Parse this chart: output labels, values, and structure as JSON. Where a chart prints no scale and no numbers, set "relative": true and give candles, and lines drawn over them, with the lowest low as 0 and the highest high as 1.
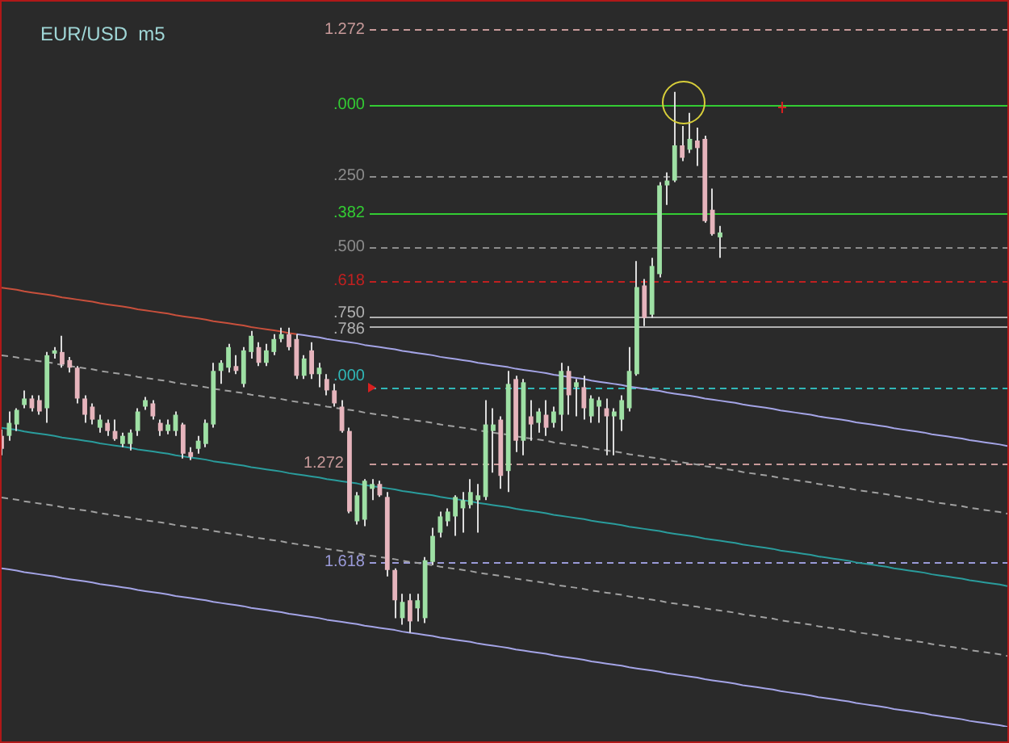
{
  "chart_data": {
    "type": "candlestick",
    "title": "EUR/USD  m5",
    "relative": true,
    "tick_labels": false,
    "categories": [
      null,
      null,
      null,
      null,
      null,
      null,
      null,
      null,
      null,
      null,
      null,
      null,
      null,
      null,
      null,
      null,
      null,
      null,
      null,
      null,
      null,
      null,
      null,
      null,
      null,
      null,
      null,
      null,
      null,
      null,
      null,
      null,
      null,
      null,
      null,
      null,
      null,
      null,
      null,
      null,
      null,
      null,
      null,
      null,
      null,
      null,
      null,
      null,
      null,
      null,
      null,
      null,
      null,
      null,
      null,
      null,
      null,
      null,
      null,
      null,
      null,
      null,
      null,
      null,
      null,
      null,
      null,
      null,
      null,
      null,
      null,
      null,
      null,
      null,
      null,
      null,
      null,
      null,
      null,
      null,
      null,
      null,
      null,
      null,
      null,
      null,
      null,
      null,
      null,
      null,
      null,
      null,
      null,
      null,
      null,
      null,
      null,
      null,
      null,
      null,
      null,
      null,
      null,
      null,
      null,
      null,
      null,
      null,
      null,
      null,
      null,
      null,
      null,
      null,
      null,
      null,
      null,
      null,
      null,
      null,
      null,
      null,
      null,
      null,
      null,
      null,
      null,
      null,
      null,
      null,
      null,
      null,
      null,
      null
    ],
    "ohlc": [
      [
        0.364,
        0.376,
        0.328,
        0.34
      ],
      [
        0.364,
        0.409,
        0.355,
        0.388
      ],
      [
        0.385,
        0.415,
        0.373,
        0.412
      ],
      [
        0.421,
        0.448,
        0.415,
        0.433
      ],
      [
        0.433,
        0.439,
        0.409,
        0.415
      ],
      [
        0.43,
        0.439,
        0.403,
        0.409
      ],
      [
        0.415,
        0.519,
        0.388,
        0.513
      ],
      [
        0.516,
        0.528,
        0.507,
        0.522
      ],
      [
        0.519,
        0.549,
        0.49,
        0.496
      ],
      [
        0.504,
        0.51,
        0.481,
        0.49
      ],
      [
        0.49,
        0.493,
        0.424,
        0.433
      ],
      [
        0.433,
        0.439,
        0.388,
        0.403
      ],
      [
        0.418,
        0.424,
        0.385,
        0.394
      ],
      [
        0.379,
        0.403,
        0.37,
        0.394
      ],
      [
        0.388,
        0.394,
        0.364,
        0.373
      ],
      [
        0.373,
        0.394,
        0.355,
        0.358
      ],
      [
        0.349,
        0.37,
        0.343,
        0.364
      ],
      [
        0.349,
        0.376,
        0.337,
        0.37
      ],
      [
        0.373,
        0.415,
        0.364,
        0.409
      ],
      [
        0.418,
        0.436,
        0.412,
        0.43
      ],
      [
        0.424,
        0.43,
        0.394,
        0.4
      ],
      [
        0.388,
        0.394,
        0.364,
        0.373
      ],
      [
        0.373,
        0.394,
        0.367,
        0.385
      ],
      [
        0.373,
        0.409,
        0.364,
        0.403
      ],
      [
        0.385,
        0.388,
        0.322,
        0.331
      ],
      [
        0.334,
        0.343,
        0.319,
        0.325
      ],
      [
        0.34,
        0.364,
        0.331,
        0.355
      ],
      [
        0.349,
        0.394,
        0.343,
        0.388
      ],
      [
        0.385,
        0.499,
        0.379,
        0.484
      ],
      [
        0.484,
        0.504,
        0.46,
        0.499
      ],
      [
        0.49,
        0.534,
        0.481,
        0.528
      ],
      [
        0.493,
        0.513,
        0.478,
        0.484
      ],
      [
        0.46,
        0.528,
        0.454,
        0.522
      ],
      [
        0.519,
        0.558,
        0.507,
        0.549
      ],
      [
        0.528,
        0.537,
        0.493,
        0.499
      ],
      [
        0.499,
        0.534,
        0.493,
        0.522
      ],
      [
        0.519,
        0.552,
        0.513,
        0.543
      ],
      [
        0.543,
        0.564,
        0.537,
        0.552
      ],
      [
        0.552,
        0.564,
        0.522,
        0.528
      ],
      [
        0.543,
        0.552,
        0.469,
        0.475
      ],
      [
        0.475,
        0.513,
        0.469,
        0.507
      ],
      [
        0.522,
        0.537,
        0.469,
        0.478
      ],
      [
        0.478,
        0.499,
        0.454,
        0.49
      ],
      [
        0.469,
        0.478,
        0.439,
        0.448
      ],
      [
        0.448,
        0.46,
        0.418,
        0.424
      ],
      [
        0.418,
        0.43,
        0.37,
        0.373
      ],
      [
        0.373,
        0.379,
        0.221,
        0.224
      ],
      [
        0.206,
        0.26,
        0.2,
        0.254
      ],
      [
        0.209,
        0.284,
        0.197,
        0.281
      ],
      [
        0.266,
        0.284,
        0.245,
        0.275
      ],
      [
        0.275,
        0.281,
        0.251,
        0.254
      ],
      [
        0.251,
        0.26,
        0.104,
        0.116
      ],
      [
        0.116,
        0.119,
        0.027,
        0.06
      ],
      [
        0.027,
        0.072,
        0.015,
        0.057
      ],
      [
        0.06,
        0.072,
        0,
        0.021
      ],
      [
        0.045,
        0.072,
        0.021,
        0.06
      ],
      [
        0.027,
        0.14,
        0.018,
        0.134
      ],
      [
        0.131,
        0.194,
        0.125,
        0.179
      ],
      [
        0.185,
        0.224,
        0.176,
        0.215
      ],
      [
        0.206,
        0.23,
        0.197,
        0.224
      ],
      [
        0.215,
        0.254,
        0.179,
        0.251
      ],
      [
        0.23,
        0.26,
        0.185,
        0.245
      ],
      [
        0.236,
        0.284,
        0.23,
        0.26
      ],
      [
        0.245,
        0.275,
        0.185,
        0.254
      ],
      [
        0.251,
        0.43,
        0.245,
        0.385
      ],
      [
        0.373,
        0.415,
        0.296,
        0.385
      ],
      [
        0.394,
        0.4,
        0.266,
        0.29
      ],
      [
        0.299,
        0.484,
        0.26,
        0.46
      ],
      [
        0.469,
        0.475,
        0.334,
        0.355
      ],
      [
        0.355,
        0.469,
        0.328,
        0.463
      ],
      [
        0.4,
        0.43,
        0.355,
        0.385
      ],
      [
        0.388,
        0.415,
        0.37,
        0.409
      ],
      [
        0.403,
        0.43,
        0.364,
        0.379
      ],
      [
        0.388,
        0.418,
        0.379,
        0.409
      ],
      [
        0.403,
        0.499,
        0.373,
        0.484
      ],
      [
        0.484,
        0.493,
        0.403,
        0.439
      ],
      [
        0.454,
        0.469,
        0.4,
        0.463
      ],
      [
        0.454,
        0.475,
        0.394,
        0.415
      ],
      [
        0.4,
        0.439,
        0.388,
        0.433
      ],
      [
        0.418,
        0.436,
        0.388,
        0.43
      ],
      [
        0.415,
        0.433,
        0.328,
        0.4
      ],
      [
        0.4,
        0.415,
        0.328,
        0.409
      ],
      [
        0.394,
        0.439,
        0.373,
        0.43
      ],
      [
        0.415,
        0.528,
        0.409,
        0.484
      ],
      [
        0.478,
        0.687,
        0.475,
        0.639
      ],
      [
        0.642,
        0.654,
        0.567,
        0.582
      ],
      [
        0.588,
        0.693,
        0.582,
        0.678
      ],
      [
        0.663,
        0.833,
        0.657,
        0.827
      ],
      [
        0.827,
        0.851,
        0.791,
        0.836
      ],
      [
        0.836,
        1,
        0.833,
        0.901
      ],
      [
        0.901,
        0.937,
        0.872,
        0.878
      ],
      [
        0.893,
        0.961,
        0.887,
        0.913
      ],
      [
        0.91,
        0.934,
        0.863,
        0.896
      ],
      [
        0.913,
        0.919,
        0.758,
        0.761
      ],
      [
        0.782,
        0.821,
        0.734,
        0.737
      ],
      [
        0.731,
        0.752,
        0.693,
        0.74
      ],
      null,
      null,
      null,
      null,
      null,
      null,
      null,
      null,
      null,
      null,
      null,
      null,
      null,
      null,
      null,
      null,
      null,
      null,
      null,
      null,
      null,
      null,
      null,
      null,
      null,
      null,
      null,
      null,
      null,
      null,
      null,
      null,
      null,
      null,
      null,
      null,
      null,
      null
    ],
    "colors": [
      "#e6b4bc",
      "#9ee0a4",
      "#9ee0a4",
      "#9ee0a4",
      "#e6b4bc",
      "#e6b4bc",
      "#9ee0a4",
      "#9ee0a4",
      "#e6b4bc",
      "#e6b4bc",
      "#e6b4bc",
      "#e6b4bc",
      "#e6b4bc",
      "#9ee0a4",
      "#e6b4bc",
      "#e6b4bc",
      "#9ee0a4",
      "#9ee0a4",
      "#9ee0a4",
      "#9ee0a4",
      "#e6b4bc",
      "#e6b4bc",
      "#9ee0a4",
      "#9ee0a4",
      "#e6b4bc",
      "#e6b4bc",
      "#9ee0a4",
      "#9ee0a4",
      "#9ee0a4",
      "#9ee0a4",
      "#9ee0a4",
      "#e6b4bc",
      "#9ee0a4",
      "#9ee0a4",
      "#e6b4bc",
      "#9ee0a4",
      "#9ee0a4",
      "#9ee0a4",
      "#e6b4bc",
      "#e6b4bc",
      "#9ee0a4",
      "#e6b4bc",
      "#9ee0a4",
      "#e6b4bc",
      "#e6b4bc",
      "#e6b4bc",
      "#e6b4bc",
      "#9ee0a4",
      "#9ee0a4",
      "#9ee0a4",
      "#e6b4bc",
      "#e6b4bc",
      "#e6b4bc",
      "#9ee0a4",
      "#e6b4bc",
      "#9ee0a4",
      "#9ee0a4",
      "#9ee0a4",
      "#9ee0a4",
      "#9ee0a4",
      "#9ee0a4",
      "#9ee0a4",
      "#9ee0a4",
      "#9ee0a4",
      "#9ee0a4",
      "#9ee0a4",
      "#e6b4bc",
      "#9ee0a4",
      "#e6b4bc",
      "#9ee0a4",
      "#e6b4bc",
      "#9ee0a4",
      "#e6b4bc",
      "#9ee0a4",
      "#9ee0a4",
      "#e6b4bc",
      "#9ee0a4",
      "#e6b4bc",
      "#9ee0a4",
      "#9ee0a4",
      "#e6b4bc",
      "#9ee0a4",
      "#9ee0a4",
      "#9ee0a4",
      "#9ee0a4",
      "#e6b4bc",
      "#9ee0a4",
      "#9ee0a4",
      "#9ee0a4",
      "#9ee0a4",
      "#e6b4bc",
      "#9ee0a4",
      "#e6b4bc",
      "#e6b4bc",
      "#e6b4bc",
      "#9ee0a4",
      null,
      null,
      null,
      null,
      null,
      null,
      null,
      null,
      null,
      null,
      null,
      null,
      null,
      null,
      null,
      null,
      null,
      null,
      null,
      null,
      null,
      null,
      null,
      null,
      null,
      null,
      null,
      null,
      null,
      null,
      null,
      null,
      null,
      null,
      null,
      null,
      null,
      null
    ],
    "series": [
      {
        "type": "line",
        "color": "#c8503c",
        "line_style": "solid",
        "values": [
          0.638,
          0.636,
          0.634,
          0.631,
          0.629,
          0.627,
          0.625,
          0.623,
          0.62,
          0.618,
          0.616,
          0.614,
          0.612,
          0.609,
          0.607,
          0.605,
          0.603,
          0.601,
          0.598,
          0.596,
          0.594,
          0.592,
          0.59,
          0.587,
          0.585,
          0.583,
          0.581,
          0.579,
          0.576,
          0.574,
          0.572,
          0.57,
          0.568,
          0.565,
          0.563,
          0.561,
          0.559,
          0.557,
          0.554,
          0.552,
          null,
          null,
          null,
          null,
          null,
          null,
          null,
          null,
          null,
          null,
          null,
          null,
          null,
          null,
          null,
          null,
          null,
          null,
          null,
          null,
          null,
          null,
          null,
          null,
          null,
          null,
          null,
          null,
          null,
          null,
          null,
          null,
          null,
          null,
          null,
          null,
          null,
          null,
          null,
          null,
          null,
          null,
          null,
          null,
          null,
          null,
          null,
          null,
          null,
          null,
          null,
          null,
          null,
          null,
          null,
          null,
          null,
          null,
          null,
          null,
          null,
          null,
          null,
          null,
          null,
          null,
          null,
          null,
          null,
          null,
          null,
          null,
          null,
          null,
          null,
          null,
          null,
          null,
          null,
          null,
          null,
          null,
          null,
          null,
          null,
          null,
          null,
          null,
          null,
          null,
          null,
          null,
          null,
          null
        ]
      },
      {
        "type": "line",
        "color": "#a4a4e6",
        "line_style": "solid",
        "values": [
          null,
          null,
          null,
          null,
          null,
          null,
          null,
          null,
          null,
          null,
          null,
          null,
          null,
          null,
          null,
          null,
          null,
          null,
          null,
          null,
          null,
          null,
          null,
          null,
          null,
          null,
          null,
          null,
          null,
          null,
          null,
          null,
          null,
          null,
          null,
          null,
          null,
          null,
          null,
          0.552,
          0.55,
          0.548,
          0.546,
          0.543,
          0.541,
          0.539,
          0.537,
          0.535,
          0.532,
          0.53,
          0.528,
          0.526,
          0.524,
          0.521,
          0.519,
          0.517,
          0.515,
          0.513,
          0.51,
          0.508,
          0.506,
          0.504,
          0.502,
          0.499,
          0.497,
          0.495,
          0.493,
          0.491,
          0.488,
          0.486,
          0.484,
          0.482,
          0.48,
          0.477,
          0.475,
          0.473,
          0.471,
          0.469,
          0.466,
          0.464,
          0.462,
          0.46,
          0.458,
          0.455,
          0.453,
          0.451,
          0.449,
          0.447,
          0.444,
          0.442,
          0.44,
          0.438,
          0.436,
          0.433,
          0.431,
          0.429,
          0.427,
          0.425,
          0.422,
          0.42,
          0.418,
          0.416,
          0.414,
          0.411,
          0.409,
          0.407,
          0.405,
          0.403,
          0.4,
          0.398,
          0.396,
          0.394,
          0.392,
          0.389,
          0.387,
          0.385,
          0.383,
          0.381,
          0.378,
          0.376,
          0.374,
          0.372,
          0.37,
          0.367,
          0.365,
          0.363,
          0.361,
          0.359,
          0.356,
          0.354,
          0.352,
          0.35,
          0.348,
          0.345
        ]
      },
      {
        "type": "line",
        "color": "#a0a0a0",
        "line_style": "dashed",
        "values": [
          0.513,
          0.511,
          0.509,
          0.506,
          0.504,
          0.502,
          0.5,
          0.498,
          0.495,
          0.493,
          0.491,
          0.489,
          0.487,
          0.484,
          0.482,
          0.48,
          0.478,
          0.476,
          0.473,
          0.471,
          0.469,
          0.467,
          0.465,
          0.462,
          0.46,
          0.458,
          0.456,
          0.454,
          0.451,
          0.449,
          0.447,
          0.445,
          0.443,
          0.44,
          0.438,
          0.436,
          0.434,
          0.432,
          0.429,
          0.427,
          0.425,
          0.423,
          0.421,
          0.418,
          0.416,
          0.414,
          0.412,
          0.41,
          0.407,
          0.405,
          0.403,
          0.401,
          0.399,
          0.396,
          0.394,
          0.392,
          0.39,
          0.388,
          0.385,
          0.383,
          0.381,
          0.379,
          0.377,
          0.374,
          0.372,
          0.37,
          0.368,
          0.366,
          0.363,
          0.361,
          0.359,
          0.357,
          0.355,
          0.352,
          0.35,
          0.348,
          0.346,
          0.344,
          0.341,
          0.339,
          0.337,
          0.335,
          0.333,
          0.33,
          0.328,
          0.326,
          0.324,
          0.322,
          0.319,
          0.317,
          0.315,
          0.313,
          0.311,
          0.308,
          0.306,
          0.304,
          0.302,
          0.3,
          0.297,
          0.295,
          0.293,
          0.291,
          0.289,
          0.286,
          0.284,
          0.282,
          0.28,
          0.278,
          0.275,
          0.273,
          0.271,
          0.269,
          0.267,
          0.264,
          0.262,
          0.26,
          0.258,
          0.256,
          0.253,
          0.251,
          0.249,
          0.247,
          0.245,
          0.242,
          0.24,
          0.238,
          0.236,
          0.234,
          0.231,
          0.229,
          0.227,
          0.225,
          0.223,
          0.22
        ]
      },
      {
        "type": "line",
        "color": "#2a9c9c",
        "line_style": "solid",
        "values": [
          0.379,
          0.377,
          0.375,
          0.372,
          0.37,
          0.368,
          0.366,
          0.364,
          0.361,
          0.359,
          0.357,
          0.355,
          0.353,
          0.35,
          0.348,
          0.346,
          0.344,
          0.342,
          0.339,
          0.337,
          0.335,
          0.333,
          0.331,
          0.328,
          0.326,
          0.324,
          0.322,
          0.32,
          0.317,
          0.315,
          0.313,
          0.311,
          0.309,
          0.306,
          0.304,
          0.302,
          0.3,
          0.298,
          0.295,
          0.293,
          0.291,
          0.289,
          0.287,
          0.284,
          0.282,
          0.28,
          0.278,
          0.276,
          0.273,
          0.271,
          0.269,
          0.267,
          0.265,
          0.262,
          0.26,
          0.258,
          0.256,
          0.254,
          0.251,
          0.249,
          0.247,
          0.245,
          0.243,
          0.24,
          0.238,
          0.236,
          0.234,
          0.232,
          0.229,
          0.227,
          0.225,
          0.223,
          0.221,
          0.218,
          0.216,
          0.214,
          0.212,
          0.21,
          0.207,
          0.205,
          0.203,
          0.201,
          0.199,
          0.196,
          0.194,
          0.192,
          0.19,
          0.188,
          0.185,
          0.183,
          0.181,
          0.179,
          0.177,
          0.174,
          0.172,
          0.17,
          0.168,
          0.166,
          0.163,
          0.161,
          0.159,
          0.157,
          0.155,
          0.152,
          0.15,
          0.148,
          0.146,
          0.144,
          0.141,
          0.139,
          0.137,
          0.135,
          0.133,
          0.13,
          0.128,
          0.126,
          0.124,
          0.122,
          0.119,
          0.117,
          0.115,
          0.113,
          0.111,
          0.108,
          0.106,
          0.104,
          0.102,
          0.1,
          0.097,
          0.095,
          0.093,
          0.091,
          0.089,
          0.086
        ]
      },
      {
        "type": "line",
        "color": "#a0a0a0",
        "line_style": "dashed",
        "values": [
          0.25,
          0.248,
          0.246,
          0.243,
          0.241,
          0.239,
          0.237,
          0.235,
          0.232,
          0.23,
          0.228,
          0.226,
          0.224,
          0.221,
          0.219,
          0.217,
          0.215,
          0.213,
          0.21,
          0.208,
          0.206,
          0.204,
          0.202,
          0.199,
          0.197,
          0.195,
          0.193,
          0.191,
          0.188,
          0.186,
          0.184,
          0.182,
          0.18,
          0.177,
          0.175,
          0.173,
          0.171,
          0.169,
          0.166,
          0.164,
          0.162,
          0.16,
          0.158,
          0.155,
          0.153,
          0.151,
          0.149,
          0.147,
          0.144,
          0.142,
          0.14,
          0.138,
          0.136,
          0.133,
          0.131,
          0.129,
          0.127,
          0.125,
          0.122,
          0.12,
          0.118,
          0.116,
          0.114,
          0.111,
          0.109,
          0.107,
          0.105,
          0.103,
          0.1,
          0.098,
          0.096,
          0.094,
          0.092,
          0.089,
          0.087,
          0.085,
          0.083,
          0.081,
          0.078,
          0.076,
          0.074,
          0.072,
          0.07,
          0.067,
          0.065,
          0.063,
          0.061,
          0.059,
          0.056,
          0.054,
          0.052,
          0.05,
          0.048,
          0.045,
          0.043,
          0.041,
          0.039,
          0.037,
          0.034,
          0.032,
          0.03,
          0.028,
          0.026,
          0.023,
          0.021,
          0.019,
          0.017,
          0.015,
          0.012,
          0.01,
          0.008,
          0.006,
          0.004,
          0.001,
          -0.001,
          -0.003,
          -0.005,
          -0.007,
          -0.01,
          -0.012,
          -0.014,
          -0.016,
          -0.018,
          -0.021,
          -0.023,
          -0.025,
          -0.027,
          -0.029,
          -0.032,
          -0.034,
          -0.036,
          -0.038,
          -0.04,
          -0.043
        ]
      },
      {
        "type": "line",
        "color": "#a4a4e6",
        "line_style": "solid",
        "values": [
          0.119,
          0.117,
          0.115,
          0.112,
          0.11,
          0.108,
          0.106,
          0.104,
          0.101,
          0.099,
          0.097,
          0.095,
          0.093,
          0.09,
          0.088,
          0.086,
          0.084,
          0.082,
          0.079,
          0.077,
          0.075,
          0.073,
          0.071,
          0.068,
          0.066,
          0.064,
          0.062,
          0.06,
          0.057,
          0.055,
          0.053,
          0.051,
          0.049,
          0.046,
          0.044,
          0.042,
          0.04,
          0.038,
          0.035,
          0.033,
          0.031,
          0.029,
          0.027,
          0.024,
          0.022,
          0.02,
          0.018,
          0.016,
          0.013,
          0.011,
          0.009,
          0.007,
          0.005,
          0.002,
          0,
          -0.002,
          -0.004,
          -0.006,
          -0.009,
          -0.011,
          -0.013,
          -0.015,
          -0.017,
          -0.02,
          -0.022,
          -0.024,
          -0.026,
          -0.028,
          -0.031,
          -0.033,
          -0.035,
          -0.037,
          -0.039,
          -0.042,
          -0.044,
          -0.046,
          -0.048,
          -0.05,
          -0.053,
          -0.055,
          -0.057,
          -0.059,
          -0.061,
          -0.064,
          -0.066,
          -0.068,
          -0.07,
          -0.072,
          -0.075,
          -0.077,
          -0.079,
          -0.081,
          -0.083,
          -0.086,
          -0.088,
          -0.09,
          -0.092,
          -0.094,
          -0.097,
          -0.099,
          -0.101,
          -0.103,
          -0.105,
          -0.108,
          -0.11,
          -0.112,
          -0.114,
          -0.116,
          -0.119,
          -0.121,
          -0.123,
          -0.125,
          -0.127,
          -0.13,
          -0.132,
          -0.134,
          -0.136,
          -0.138,
          -0.141,
          -0.143,
          -0.145,
          -0.147,
          -0.149,
          -0.152,
          -0.154,
          -0.156,
          -0.158,
          -0.16,
          -0.163,
          -0.165,
          -0.167,
          -0.169,
          -0.171,
          -0.174
        ]
      }
    ],
    "ref_lines": [
      {
        "axis": "y",
        "value": 1.116,
        "color": "#c89a9a",
        "line_style": "dashed"
      },
      {
        "axis": "y",
        "value": 0.976,
        "color": "#33cc33",
        "line_style": "solid"
      },
      {
        "axis": "y",
        "value": 0.845,
        "color": "#8c8c8c",
        "line_style": "dashed"
      },
      {
        "axis": "y",
        "value": 0.776,
        "color": "#33cc33",
        "line_style": "solid"
      },
      {
        "axis": "y",
        "value": 0.713,
        "color": "#8c8c8c",
        "line_style": "dashed"
      },
      {
        "axis": "y",
        "value": 0.651,
        "color": "#c02020",
        "line_style": "dashed"
      },
      {
        "axis": "y",
        "value": 0.585,
        "color": "#b0b0b0",
        "line_style": "solid"
      },
      {
        "axis": "y",
        "value": 0.567,
        "color": "#b0b0b0",
        "line_style": "solid"
      },
      {
        "axis": "y",
        "value": 0.454,
        "color": "#30b8b8",
        "line_style": "dashed"
      },
      {
        "axis": "y",
        "value": 0.313,
        "color": "#c89a9a",
        "line_style": "dashed"
      },
      {
        "axis": "y",
        "value": 0.131,
        "color": "#9a9ad8",
        "line_style": "dashed"
      }
    ],
    "annotations": [
      "1.272",
      ".000",
      ".250",
      ".382",
      ".500",
      ".618",
      ".750",
      ".786",
      ".000",
      "1.272",
      "1.618"
    ]
  }
}
